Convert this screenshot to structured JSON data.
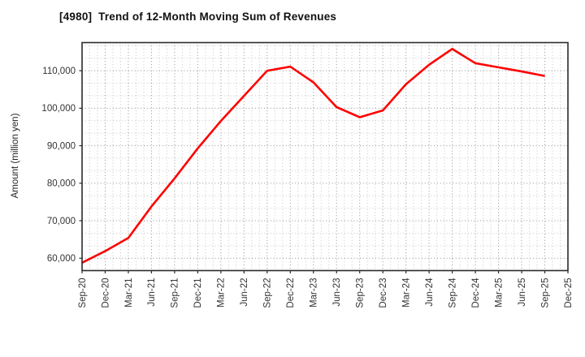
{
  "chart_data": {
    "type": "line",
    "title": "[4980]  Trend of 12-Month Moving Sum of Revenues",
    "xlabel": "",
    "ylabel": "Amount (million yen)",
    "categories": [
      "Sep-20",
      "Dec-20",
      "Mar-21",
      "Jun-21",
      "Sep-21",
      "Dec-21",
      "Mar-22",
      "Jun-22",
      "Sep-22",
      "Dec-22",
      "Mar-23",
      "Jun-23",
      "Sep-23",
      "Dec-23",
      "Mar-24",
      "Jun-24",
      "Sep-24",
      "Dec-24",
      "Mar-25",
      "Jun-25",
      "Sep-25",
      "Dec-25"
    ],
    "series": [
      {
        "name": "12-Month Moving Sum of Revenues",
        "color": "#ff0000",
        "values": [
          58800,
          61900,
          65400,
          73800,
          81300,
          89300,
          96600,
          103300,
          110000,
          111100,
          106900,
          100300,
          97600,
          99400,
          106400,
          111600,
          115800,
          112000,
          110900,
          109800,
          108600,
          null
        ]
      }
    ],
    "ylim": [
      56700,
      117500
    ],
    "yticks": [
      60000,
      70000,
      80000,
      90000,
      100000,
      110000
    ],
    "ytick_labels": [
      "60,000",
      "70,000",
      "80,000",
      "90,000",
      "100,000",
      "110,000"
    ],
    "grid": {
      "show": true,
      "style": "dotted",
      "major_color": "#909090",
      "minor_color": "#c6c6c6",
      "x_minor_per_major": 3,
      "y_minor_per_major": 3
    },
    "legend_position": "none",
    "line_width": 2.6,
    "axis_color": "#2b2b2b",
    "tick_label_color": "#333333"
  }
}
